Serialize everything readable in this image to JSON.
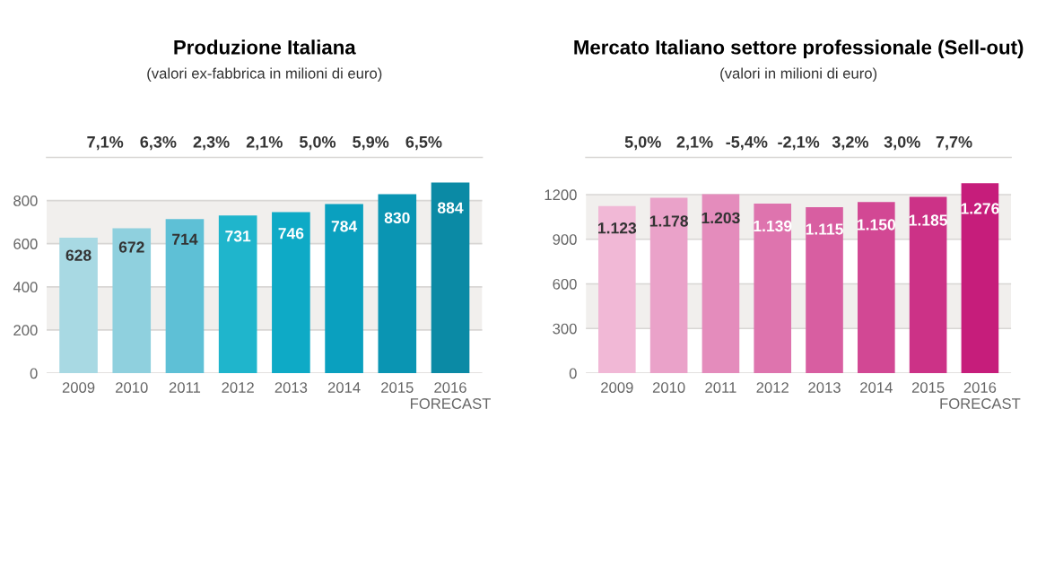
{
  "chart_data": [
    {
      "type": "bar",
      "title": "Produzione Italiana",
      "subtitle": "(valori ex-fabbrica in milioni di euro)",
      "categories": [
        "2009",
        "2010",
        "2011",
        "2012",
        "2013",
        "2014",
        "2015",
        "2016\nFORECAST"
      ],
      "values": [
        628,
        672,
        714,
        731,
        746,
        784,
        830,
        884
      ],
      "value_labels": [
        "628",
        "672",
        "714",
        "731",
        "746",
        "784",
        "830",
        "884"
      ],
      "colors": [
        "#a8d9e3",
        "#8fd0de",
        "#5ec0d6",
        "#1fb5cc",
        "#0eaac6",
        "#0aa0bf",
        "#0a95b3",
        "#0b8aa5"
      ],
      "annotations": [
        "7,1%",
        "6,3%",
        "2,3%",
        "2,1%",
        "5,0%",
        "5,9%",
        "6,5%"
      ],
      "ylim": [
        0,
        1000
      ],
      "yticks": [
        0,
        200,
        400,
        600,
        800
      ],
      "grid": "y"
    },
    {
      "type": "bar",
      "title": "Mercato Italiano settore professionale (Sell-out)",
      "subtitle": "(valori in milioni di euro)",
      "categories": [
        "2009",
        "2010",
        "2011",
        "2012",
        "2013",
        "2014",
        "2015",
        "2016\nFORECAST"
      ],
      "values": [
        1123,
        1178,
        1203,
        1139,
        1115,
        1150,
        1185,
        1276
      ],
      "value_labels": [
        "1.123",
        "1.178",
        "1.203",
        "1.139",
        "1.115",
        "1.150",
        "1.185",
        "1.276"
      ],
      "colors": [
        "#f1b8d6",
        "#eaa2c9",
        "#e48cbc",
        "#de74ae",
        "#d85ea1",
        "#d24894",
        "#cc3287",
        "#c61d7b"
      ],
      "annotations": [
        "5,0%",
        "2,1%",
        "-5,4%",
        "-2,1%",
        "3,2%",
        "3,0%",
        "7,7%"
      ],
      "ylim": [
        0,
        1450
      ],
      "yticks": [
        0,
        300,
        600,
        900,
        1200
      ],
      "grid": "y"
    }
  ]
}
